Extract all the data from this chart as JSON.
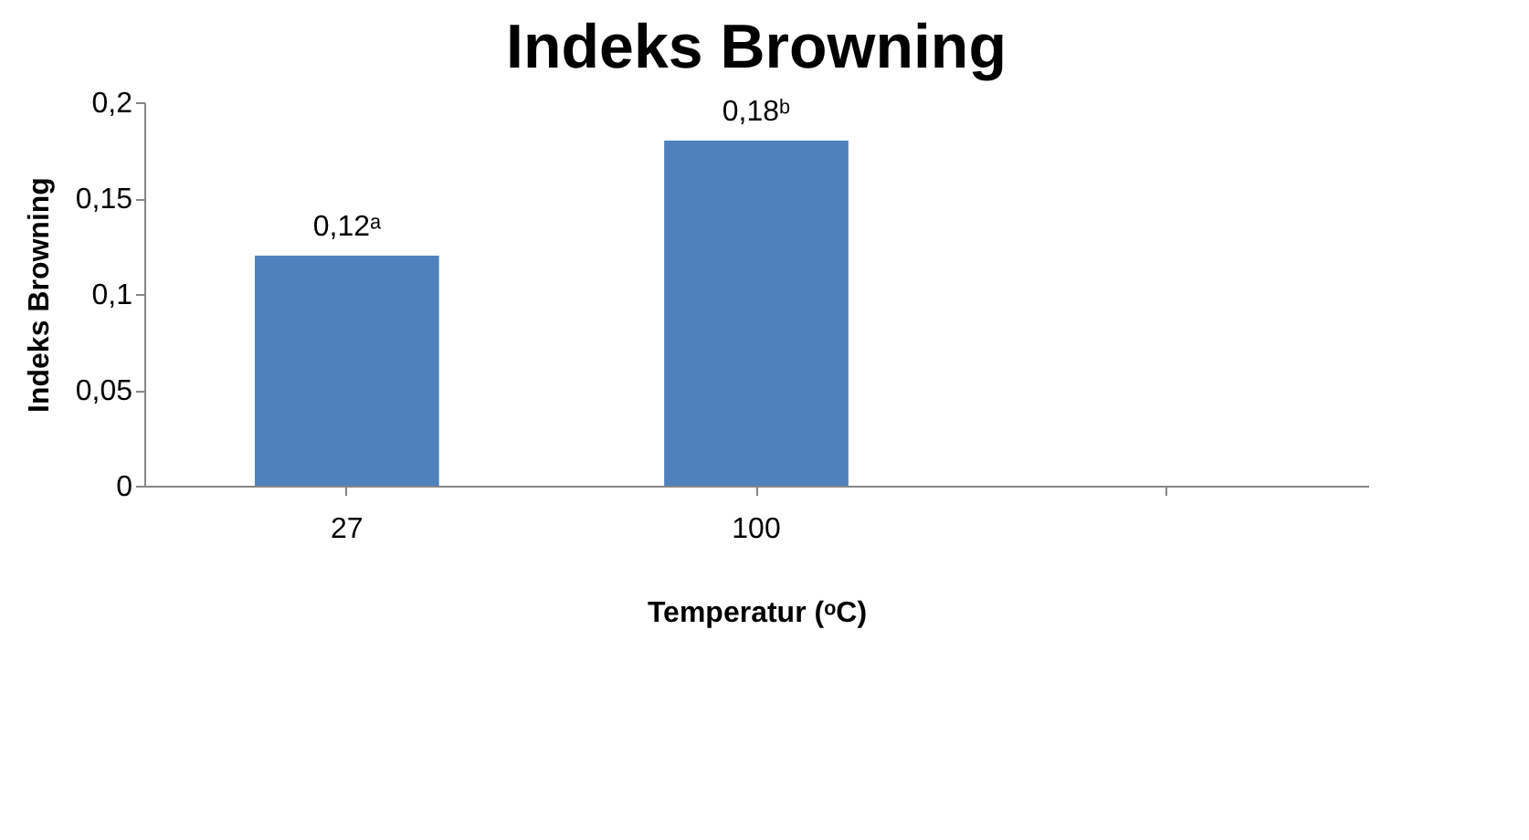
{
  "chart_data": {
    "type": "bar",
    "title": "Indeks Browning",
    "xlabel": "Temperatur (ᵒC)",
    "ylabel": "Indeks Browning",
    "categories": [
      "27",
      "100",
      null
    ],
    "values": [
      0.12,
      0.18,
      null
    ],
    "color": "#4f81bd",
    "value_labels": [
      "0,12ᵃ",
      "0,18ᵇ",
      null
    ],
    "ylim": [
      0,
      0.2
    ],
    "yticks": [
      0,
      {
        "value": 0.05,
        "label": "0,05"
      },
      {
        "value": 0.1,
        "label": "0,1"
      },
      {
        "value": 0.15,
        "label": "0,15"
      },
      {
        "value": 0.2,
        "label": "0,2"
      }
    ],
    "grid": false
  }
}
